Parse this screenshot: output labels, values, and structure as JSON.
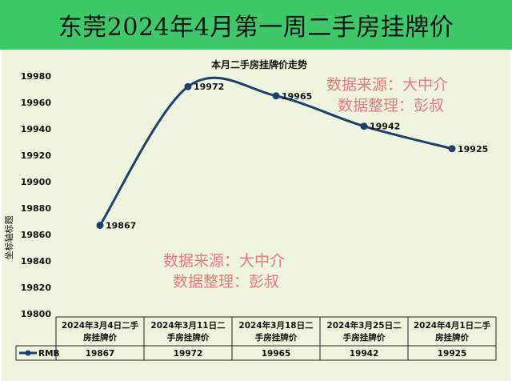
{
  "header": {
    "title": "东莞2024年4月第一周二手房挂牌价"
  },
  "watermark": {
    "line1": "数据来源：大中介",
    "line2": "数据整理：彭叔"
  },
  "colors": {
    "header_bg": "#3dc86a",
    "panel_bg": "#eef4dd",
    "line": "#1f3f6e",
    "watermark": "#e77a7a"
  },
  "chart_data": {
    "type": "line",
    "title": "本月二手房挂牌价走势",
    "ylabel": "坐标轴标题",
    "xlabel": "",
    "ylim": [
      19800,
      19980
    ],
    "yticks": [
      19800,
      19820,
      19840,
      19860,
      19880,
      19900,
      19920,
      19940,
      19960,
      19980
    ],
    "categories": [
      "2024年3月4日二手房挂牌价",
      "2024年3月11日二手房挂牌价",
      "2024年3月18日二手房挂牌价",
      "2024年3月25日二手房挂牌价",
      "2024年4月1日二手房挂牌价"
    ],
    "category_lines": [
      [
        "2024年3月4日二手",
        "房挂牌价"
      ],
      [
        "2024年3月11日二",
        "手房挂牌价"
      ],
      [
        "2024年3月18日二",
        "手房挂牌价"
      ],
      [
        "2024年3月25日二",
        "手房挂牌价"
      ],
      [
        "2024年4月1日二手",
        "房挂牌价"
      ]
    ],
    "series": [
      {
        "name": "RMB",
        "values": [
          19867,
          19972,
          19965,
          19942,
          19925
        ]
      }
    ],
    "legend": "table-left",
    "grid": false,
    "data_labels": true
  }
}
